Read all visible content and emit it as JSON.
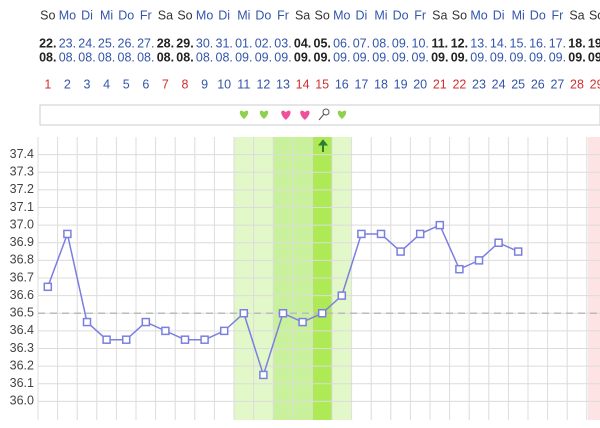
{
  "chart_data": {
    "type": "line",
    "weekdays": [
      "So",
      "Mo",
      "Di",
      "Mi",
      "Do",
      "Fr",
      "Sa",
      "So",
      "Mo",
      "Di",
      "Mi",
      "Do",
      "Fr",
      "Sa",
      "So",
      "Mo",
      "Di",
      "Mi",
      "Do",
      "Fr",
      "Sa",
      "So",
      "Mo",
      "Di",
      "Mi",
      "Do",
      "Fr",
      "Sa",
      "So"
    ],
    "date_days": [
      "22.",
      "23.",
      "24.",
      "25.",
      "26.",
      "27.",
      "28.",
      "29.",
      "30.",
      "31.",
      "01.",
      "02.",
      "03.",
      "04.",
      "05.",
      "06.",
      "07.",
      "08.",
      "09.",
      "10.",
      "11.",
      "12.",
      "13.",
      "14.",
      "15.",
      "16.",
      "17.",
      "18.",
      "19."
    ],
    "date_months": [
      "08.",
      "08.",
      "08.",
      "08.",
      "08.",
      "08.",
      "08.",
      "08.",
      "08.",
      "08.",
      "09.",
      "09.",
      "09.",
      "09.",
      "09.",
      "09.",
      "09.",
      "09.",
      "09.",
      "09.",
      "09.",
      "09.",
      "09.",
      "09.",
      "09.",
      "09.",
      "09.",
      "09.",
      "09."
    ],
    "categories": [
      "1",
      "2",
      "3",
      "4",
      "5",
      "6",
      "7",
      "8",
      "9",
      "10",
      "11",
      "12",
      "13",
      "14",
      "15",
      "16",
      "17",
      "18",
      "19",
      "20",
      "21",
      "22",
      "23",
      "24",
      "25",
      "26",
      "27",
      "28",
      "29"
    ],
    "day_number_colors": [
      "#d32f2f",
      "#3355aa",
      "#3355aa",
      "#3355aa",
      "#3355aa",
      "#3355aa",
      "#d32f2f",
      "#d32f2f",
      "#3355aa",
      "#3355aa",
      "#3355aa",
      "#3355aa",
      "#3355aa",
      "#d32f2f",
      "#d32f2f",
      "#3355aa",
      "#3355aa",
      "#3355aa",
      "#3355aa",
      "#3355aa",
      "#d32f2f",
      "#d32f2f",
      "#3355aa",
      "#3355aa",
      "#3355aa",
      "#3355aa",
      "#3355aa",
      "#d32f2f",
      "#d32f2f"
    ],
    "values": [
      36.65,
      36.95,
      36.45,
      36.35,
      36.35,
      36.45,
      36.4,
      36.35,
      36.35,
      36.4,
      36.5,
      36.15,
      36.5,
      36.45,
      36.5,
      36.6,
      36.95,
      36.95,
      36.85,
      36.95,
      37.0,
      36.75,
      36.8,
      36.9,
      36.85,
      null,
      null,
      null,
      null
    ],
    "color": "#7b7fe0",
    "coverline": 36.5,
    "ylim": [
      35.9,
      37.5
    ],
    "yticks": [
      {
        "value": 36.0,
        "label": "36.0"
      },
      36.1,
      36.2,
      36.3,
      36.4,
      36.5,
      36.6,
      36.7,
      36.8,
      36.9,
      {
        "value": 37.0,
        "label": "37.0"
      },
      37.1,
      37.2,
      37.3,
      37.4
    ],
    "grid": true
  }
}
